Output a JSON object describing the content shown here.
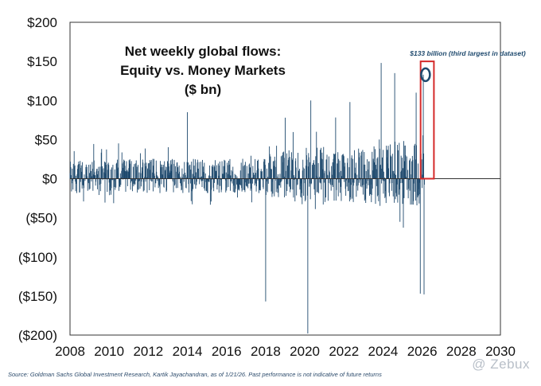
{
  "chart_data": {
    "type": "bar",
    "title_lines": [
      "Net weekly global flows:",
      "Equity vs. Money Markets",
      "($ bn)"
    ],
    "xlabel": "",
    "ylabel": "",
    "xlim": [
      2008,
      2030
    ],
    "ylim": [
      -200,
      200
    ],
    "x_ticks": [
      "2008",
      "2010",
      "2012",
      "2014",
      "2016",
      "2018",
      "2020",
      "2022",
      "2024",
      "2026",
      "2028",
      "2030"
    ],
    "y_ticks": [
      "$200",
      "$150",
      "$100",
      "$50",
      "$0",
      "($50)",
      "($100)",
      "($150)",
      "($200)"
    ],
    "y_tick_values": [
      200,
      150,
      100,
      50,
      0,
      -50,
      -100,
      -150,
      -200
    ],
    "series_color": "#1f4a6e",
    "highlight_color": "#d42a2a",
    "notable_points": [
      {
        "x": 2014.0,
        "y": 85
      },
      {
        "x": 2018.0,
        "y": -157
      },
      {
        "x": 2019.0,
        "y": 78
      },
      {
        "x": 2020.15,
        "y": -198
      },
      {
        "x": 2020.3,
        "y": 100
      },
      {
        "x": 2022.3,
        "y": 98
      },
      {
        "x": 2023.9,
        "y": 148
      },
      {
        "x": 2024.6,
        "y": 135
      },
      {
        "x": 2025.7,
        "y": 110
      },
      {
        "x": 2025.9,
        "y": -147
      },
      {
        "x": 2026.05,
        "y": 133
      },
      {
        "x": 2026.1,
        "y": -148
      }
    ],
    "callout": {
      "text": "$133 billion (third largest in dataset)",
      "x": 2026.05,
      "y": 133
    },
    "highlight_range": {
      "x_start": 2025.92,
      "x_end": 2026.6,
      "y_start": 0,
      "y_end": 150
    }
  },
  "source_text": "Source: Goldman Sachs Global Investment Research, Kartik Jayachandran, as of 1/21/26. Past performance is not indicative of future returns",
  "watermark_text": "@ Zebux"
}
